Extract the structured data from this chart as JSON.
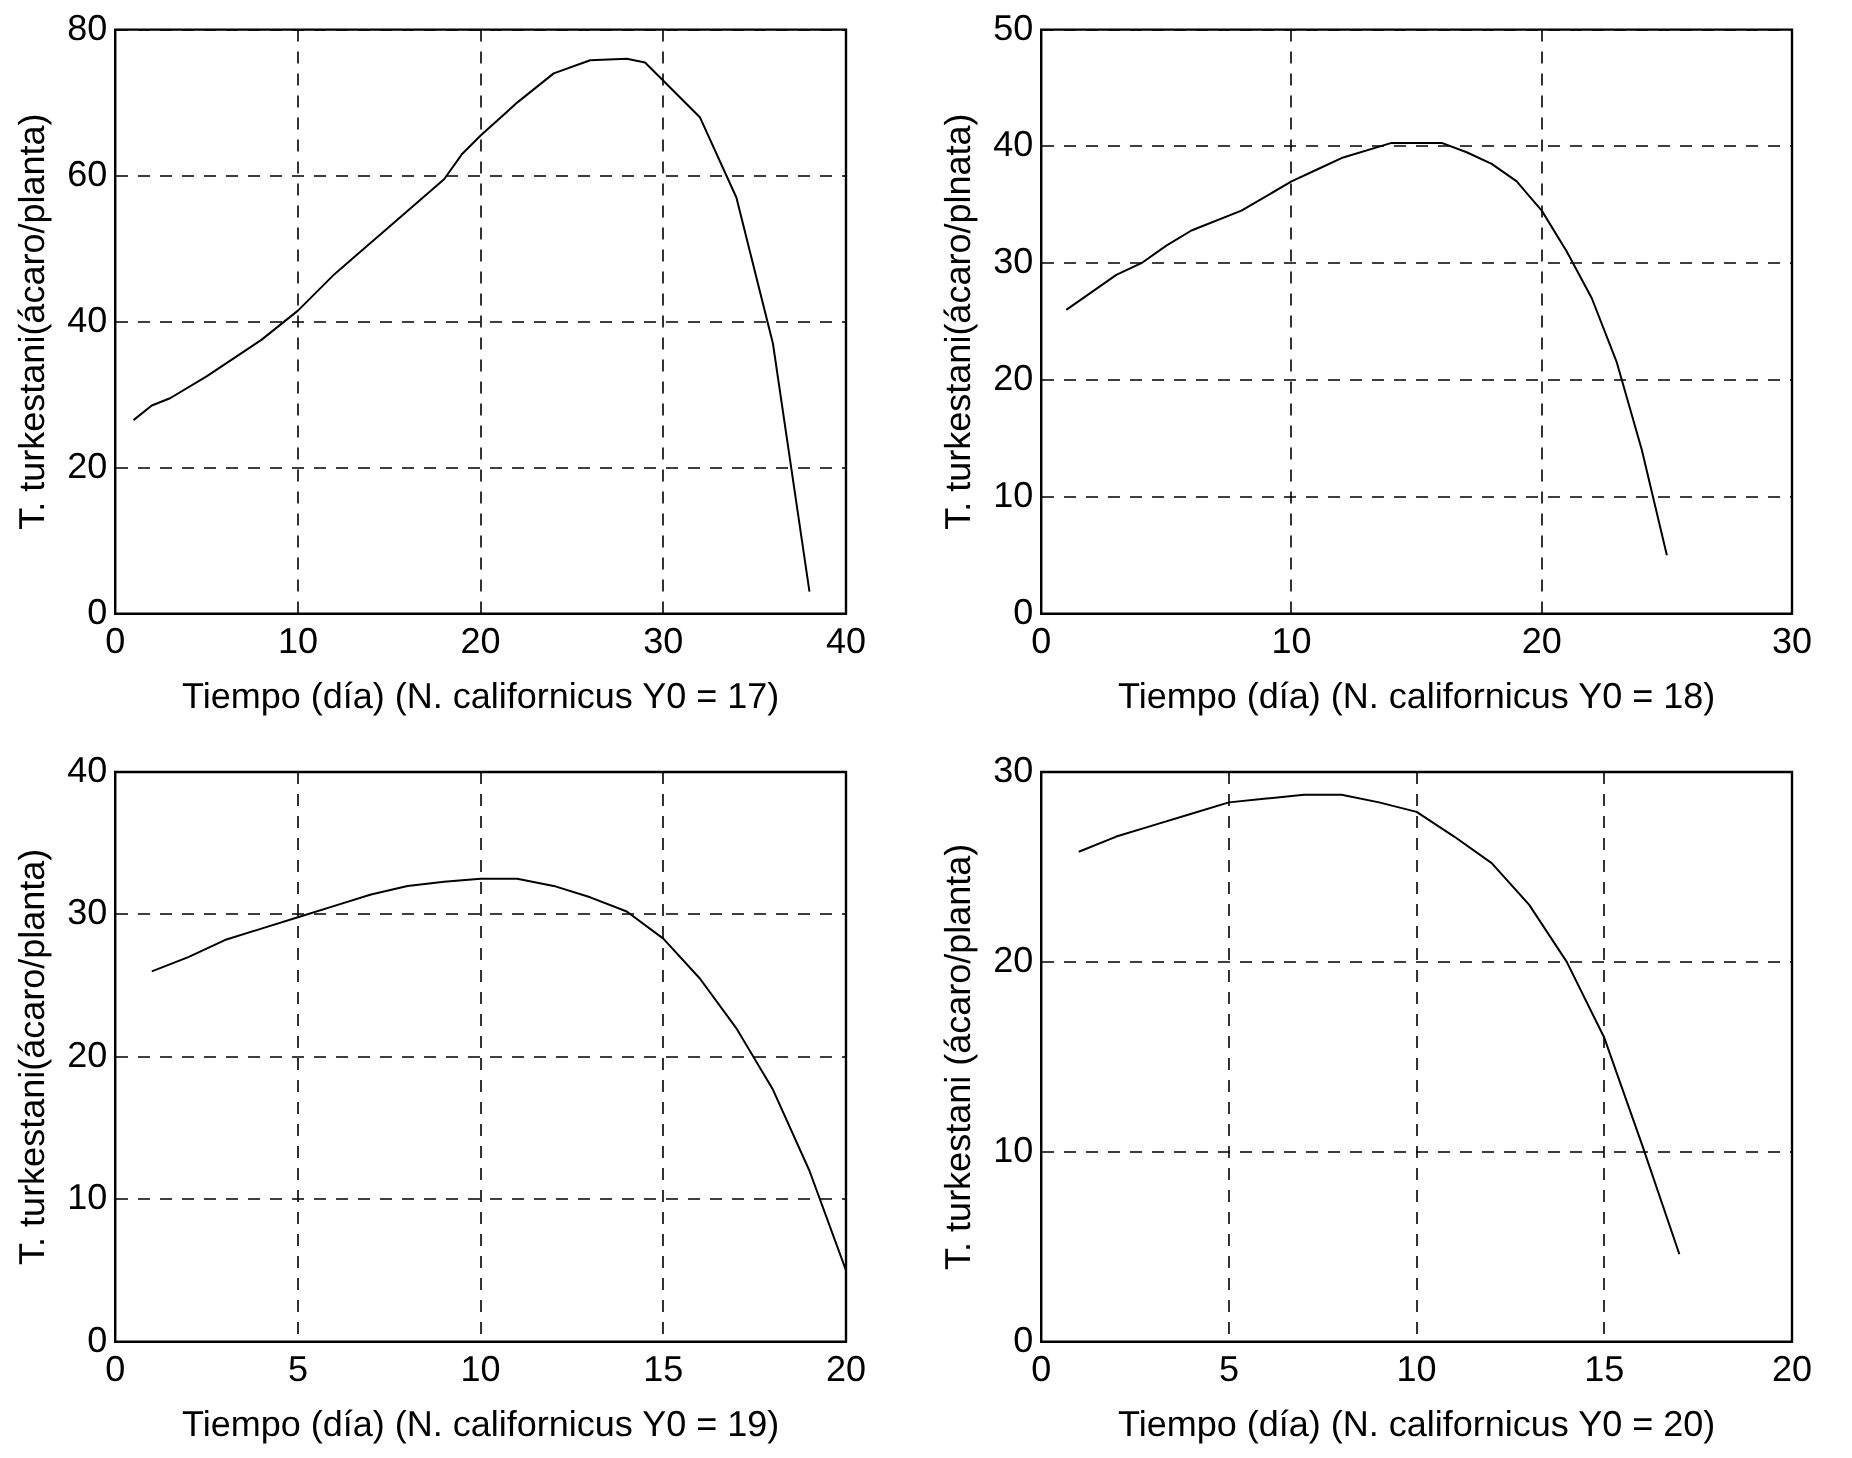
{
  "chart_data": [
    {
      "type": "line",
      "xlabel": "Tiempo (día) (N. californicus Y0 = 17)",
      "ylabel": "T. turkestani(ácaro/planta)",
      "xlim": [
        0,
        40
      ],
      "xticks": [
        0,
        10,
        20,
        30,
        40
      ],
      "ylim": [
        0,
        80
      ],
      "yticks": [
        0,
        20,
        40,
        60,
        80
      ],
      "grid": true,
      "line_style": "solid",
      "marker": "none",
      "series": [
        {
          "color": "#000000",
          "x": [
            1,
            2,
            3,
            5,
            8,
            10,
            12,
            15,
            18,
            19,
            20,
            22,
            24,
            26,
            28,
            29,
            30,
            32,
            34,
            36,
            37,
            38
          ],
          "values": [
            26.5,
            28.5,
            29.5,
            32.5,
            37.5,
            41.5,
            46.5,
            53,
            59.5,
            63,
            65.5,
            70,
            74,
            75.8,
            76,
            75.5,
            73,
            68,
            57,
            37,
            20,
            3
          ]
        }
      ]
    },
    {
      "type": "line",
      "xlabel": "Tiempo (día) (N. californicus Y0 = 18)",
      "ylabel": "T. turkestani(ácaro/plnata)",
      "xlim": [
        0,
        30
      ],
      "xticks": [
        0,
        10,
        20,
        30
      ],
      "ylim": [
        0,
        50
      ],
      "yticks": [
        0,
        10,
        20,
        30,
        40,
        50
      ],
      "grid": true,
      "line_style": "solid",
      "marker": "none",
      "series": [
        {
          "color": "#000000",
          "x": [
            1,
            2,
            3,
            4,
            5,
            6,
            8,
            10,
            11,
            12,
            14,
            16,
            17,
            18,
            19,
            20,
            21,
            22,
            23,
            24,
            25
          ],
          "values": [
            26,
            27.5,
            29,
            30,
            31.5,
            32.8,
            34.5,
            37,
            38,
            39,
            40.3,
            40.3,
            39.5,
            38.5,
            37,
            34.5,
            31,
            27,
            21.5,
            14,
            5
          ]
        }
      ]
    },
    {
      "type": "line",
      "xlabel": "Tiempo (día) (N. californicus Y0 = 19)",
      "ylabel": "T. turkestani(ácaro/planta)",
      "xlim": [
        0,
        20
      ],
      "xticks": [
        0,
        5,
        10,
        15,
        20
      ],
      "ylim": [
        0,
        40
      ],
      "yticks": [
        0,
        10,
        20,
        30,
        40
      ],
      "grid": true,
      "line_style": "solid",
      "marker": "none",
      "series": [
        {
          "color": "#000000",
          "x": [
            1,
            2,
            3,
            4,
            5,
            6,
            7,
            8,
            9,
            10,
            11,
            12,
            13,
            14,
            15,
            16,
            17,
            18,
            19,
            20
          ],
          "values": [
            26,
            27,
            28.2,
            29,
            29.8,
            30.6,
            31.4,
            32,
            32.3,
            32.5,
            32.5,
            32,
            31.2,
            30.2,
            28.3,
            25.5,
            22,
            17.7,
            12,
            5
          ]
        }
      ]
    },
    {
      "type": "line",
      "xlabel": "Tiempo (día) (N. californicus Y0 = 20)",
      "ylabel": "T. turkestani (ácaro/planta)",
      "xlim": [
        0,
        20
      ],
      "xticks": [
        0,
        5,
        10,
        15,
        20
      ],
      "ylim": [
        0,
        30
      ],
      "yticks": [
        0,
        10,
        20,
        30
      ],
      "grid": true,
      "line_style": "solid",
      "marker": "none",
      "series": [
        {
          "color": "#000000",
          "x": [
            1,
            2,
            3,
            4,
            5,
            6,
            7,
            8,
            9,
            10,
            11,
            12,
            13,
            14,
            15,
            16,
            17
          ],
          "values": [
            25.8,
            26.6,
            27.2,
            27.8,
            28.4,
            28.6,
            28.8,
            28.8,
            28.4,
            27.9,
            26.6,
            25.2,
            23,
            20,
            16,
            10.4,
            4.6
          ]
        }
      ]
    }
  ]
}
